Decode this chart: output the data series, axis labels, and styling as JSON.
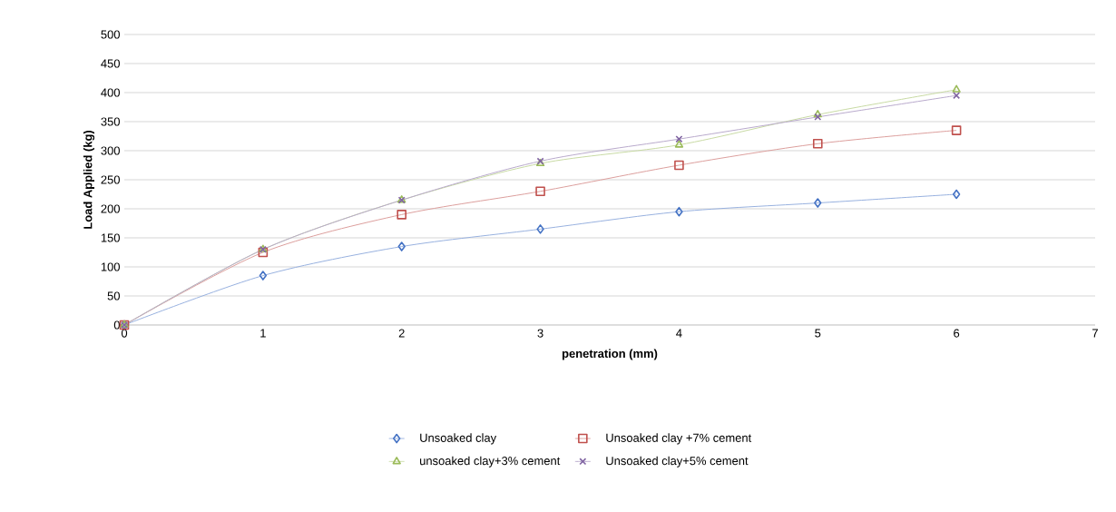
{
  "chart_data": {
    "type": "line",
    "xlabel": "penetration (mm)",
    "ylabel": "Load Applied (kg)",
    "x": [
      0,
      1,
      2,
      3,
      4,
      5,
      6
    ],
    "series": [
      {
        "name": "Unsoaked clay",
        "color": "#4472c4",
        "marker": "diamond",
        "values": [
          0,
          85,
          135,
          165,
          195,
          210,
          225
        ]
      },
      {
        "name": "Unsoaked clay +7% cement",
        "color": "#c0504d",
        "marker": "square",
        "values": [
          0,
          125,
          190,
          230,
          275,
          312,
          335
        ]
      },
      {
        "name": "unsoaked clay+3% cement",
        "color": "#9bbb59",
        "marker": "triangle",
        "values": [
          0,
          130,
          215,
          278,
          310,
          362,
          405
        ]
      },
      {
        "name": "Unsoaked clay+5% cement",
        "color": "#8064a2",
        "marker": "cross",
        "values": [
          0,
          130,
          215,
          282,
          320,
          358,
          395
        ]
      }
    ],
    "xlim": [
      0,
      7
    ],
    "xticks": [
      0,
      1,
      2,
      3,
      4,
      5,
      6,
      7
    ],
    "ylim": [
      0,
      500
    ],
    "yticks": [
      0,
      50,
      100,
      150,
      200,
      250,
      300,
      350,
      400,
      450,
      500
    ],
    "grid": "y",
    "legend": "bottom"
  }
}
